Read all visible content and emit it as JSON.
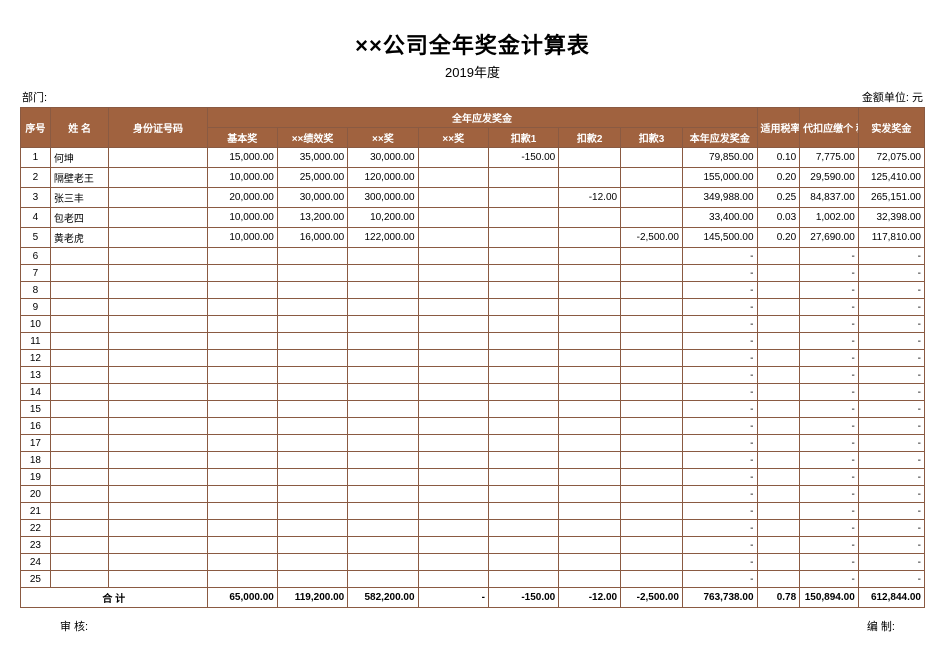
{
  "title": "××公司全年奖金计算表",
  "subtitle": "2019年度",
  "topLeft": "部门:",
  "topRight": "金额单位: 元",
  "headers": {
    "seq": "序号",
    "name": "姓  名",
    "id": "身份证号码",
    "group": "全年应发奖金",
    "base": "基本奖",
    "perf": "××绩效奖",
    "bon1": "××奖",
    "bon2": "××奖",
    "ded1": "扣款1",
    "ded2": "扣款2",
    "ded3": "扣款3",
    "total": "本年应发奖金",
    "rate": "适用税率",
    "tax": "代扣应缴个    税",
    "net": "实发奖金"
  },
  "rows": [
    {
      "seq": "1",
      "name": "何坤",
      "id": "",
      "base": "15,000.00",
      "perf": "35,000.00",
      "bon1": "30,000.00",
      "bon2": "",
      "ded1": "-150.00",
      "ded2": "",
      "ded3": "",
      "total": "79,850.00",
      "rate": "0.10",
      "tax": "7,775.00",
      "net": "72,075.00"
    },
    {
      "seq": "2",
      "name": "隔壁老王",
      "id": "",
      "base": "10,000.00",
      "perf": "25,000.00",
      "bon1": "120,000.00",
      "bon2": "",
      "ded1": "",
      "ded2": "",
      "ded3": "",
      "total": "155,000.00",
      "rate": "0.20",
      "tax": "29,590.00",
      "net": "125,410.00"
    },
    {
      "seq": "3",
      "name": "张三丰",
      "id": "",
      "base": "20,000.00",
      "perf": "30,000.00",
      "bon1": "300,000.00",
      "bon2": "",
      "ded1": "",
      "ded2": "-12.00",
      "ded3": "",
      "total": "349,988.00",
      "rate": "0.25",
      "tax": "84,837.00",
      "net": "265,151.00"
    },
    {
      "seq": "4",
      "name": "包老四",
      "id": "",
      "base": "10,000.00",
      "perf": "13,200.00",
      "bon1": "10,200.00",
      "bon2": "",
      "ded1": "",
      "ded2": "",
      "ded3": "",
      "total": "33,400.00",
      "rate": "0.03",
      "tax": "1,002.00",
      "net": "32,398.00"
    },
    {
      "seq": "5",
      "name": "黄老虎",
      "id": "",
      "base": "10,000.00",
      "perf": "16,000.00",
      "bon1": "122,000.00",
      "bon2": "",
      "ded1": "",
      "ded2": "",
      "ded3": "-2,500.00",
      "total": "145,500.00",
      "rate": "0.20",
      "tax": "27,690.00",
      "net": "117,810.00"
    },
    {
      "seq": "6",
      "name": "",
      "id": "",
      "base": "",
      "perf": "",
      "bon1": "",
      "bon2": "",
      "ded1": "",
      "ded2": "",
      "ded3": "",
      "total": "-",
      "rate": "",
      "tax": "-",
      "net": "-"
    },
    {
      "seq": "7",
      "name": "",
      "id": "",
      "base": "",
      "perf": "",
      "bon1": "",
      "bon2": "",
      "ded1": "",
      "ded2": "",
      "ded3": "",
      "total": "-",
      "rate": "",
      "tax": "-",
      "net": "-"
    },
    {
      "seq": "8",
      "name": "",
      "id": "",
      "base": "",
      "perf": "",
      "bon1": "",
      "bon2": "",
      "ded1": "",
      "ded2": "",
      "ded3": "",
      "total": "-",
      "rate": "",
      "tax": "-",
      "net": "-"
    },
    {
      "seq": "9",
      "name": "",
      "id": "",
      "base": "",
      "perf": "",
      "bon1": "",
      "bon2": "",
      "ded1": "",
      "ded2": "",
      "ded3": "",
      "total": "-",
      "rate": "",
      "tax": "-",
      "net": "-"
    },
    {
      "seq": "10",
      "name": "",
      "id": "",
      "base": "",
      "perf": "",
      "bon1": "",
      "bon2": "",
      "ded1": "",
      "ded2": "",
      "ded3": "",
      "total": "-",
      "rate": "",
      "tax": "-",
      "net": "-"
    },
    {
      "seq": "11",
      "name": "",
      "id": "",
      "base": "",
      "perf": "",
      "bon1": "",
      "bon2": "",
      "ded1": "",
      "ded2": "",
      "ded3": "",
      "total": "-",
      "rate": "",
      "tax": "-",
      "net": "-"
    },
    {
      "seq": "12",
      "name": "",
      "id": "",
      "base": "",
      "perf": "",
      "bon1": "",
      "bon2": "",
      "ded1": "",
      "ded2": "",
      "ded3": "",
      "total": "-",
      "rate": "",
      "tax": "-",
      "net": "-"
    },
    {
      "seq": "13",
      "name": "",
      "id": "",
      "base": "",
      "perf": "",
      "bon1": "",
      "bon2": "",
      "ded1": "",
      "ded2": "",
      "ded3": "",
      "total": "-",
      "rate": "",
      "tax": "-",
      "net": "-"
    },
    {
      "seq": "14",
      "name": "",
      "id": "",
      "base": "",
      "perf": "",
      "bon1": "",
      "bon2": "",
      "ded1": "",
      "ded2": "",
      "ded3": "",
      "total": "-",
      "rate": "",
      "tax": "-",
      "net": "-"
    },
    {
      "seq": "15",
      "name": "",
      "id": "",
      "base": "",
      "perf": "",
      "bon1": "",
      "bon2": "",
      "ded1": "",
      "ded2": "",
      "ded3": "",
      "total": "-",
      "rate": "",
      "tax": "-",
      "net": "-"
    },
    {
      "seq": "16",
      "name": "",
      "id": "",
      "base": "",
      "perf": "",
      "bon1": "",
      "bon2": "",
      "ded1": "",
      "ded2": "",
      "ded3": "",
      "total": "-",
      "rate": "",
      "tax": "-",
      "net": "-"
    },
    {
      "seq": "17",
      "name": "",
      "id": "",
      "base": "",
      "perf": "",
      "bon1": "",
      "bon2": "",
      "ded1": "",
      "ded2": "",
      "ded3": "",
      "total": "-",
      "rate": "",
      "tax": "-",
      "net": "-"
    },
    {
      "seq": "18",
      "name": "",
      "id": "",
      "base": "",
      "perf": "",
      "bon1": "",
      "bon2": "",
      "ded1": "",
      "ded2": "",
      "ded3": "",
      "total": "-",
      "rate": "",
      "tax": "-",
      "net": "-"
    },
    {
      "seq": "19",
      "name": "",
      "id": "",
      "base": "",
      "perf": "",
      "bon1": "",
      "bon2": "",
      "ded1": "",
      "ded2": "",
      "ded3": "",
      "total": "-",
      "rate": "",
      "tax": "-",
      "net": "-"
    },
    {
      "seq": "20",
      "name": "",
      "id": "",
      "base": "",
      "perf": "",
      "bon1": "",
      "bon2": "",
      "ded1": "",
      "ded2": "",
      "ded3": "",
      "total": "-",
      "rate": "",
      "tax": "-",
      "net": "-"
    },
    {
      "seq": "21",
      "name": "",
      "id": "",
      "base": "",
      "perf": "",
      "bon1": "",
      "bon2": "",
      "ded1": "",
      "ded2": "",
      "ded3": "",
      "total": "-",
      "rate": "",
      "tax": "-",
      "net": "-"
    },
    {
      "seq": "22",
      "name": "",
      "id": "",
      "base": "",
      "perf": "",
      "bon1": "",
      "bon2": "",
      "ded1": "",
      "ded2": "",
      "ded3": "",
      "total": "-",
      "rate": "",
      "tax": "-",
      "net": "-"
    },
    {
      "seq": "23",
      "name": "",
      "id": "",
      "base": "",
      "perf": "",
      "bon1": "",
      "bon2": "",
      "ded1": "",
      "ded2": "",
      "ded3": "",
      "total": "-",
      "rate": "",
      "tax": "-",
      "net": "-"
    },
    {
      "seq": "24",
      "name": "",
      "id": "",
      "base": "",
      "perf": "",
      "bon1": "",
      "bon2": "",
      "ded1": "",
      "ded2": "",
      "ded3": "",
      "total": "-",
      "rate": "",
      "tax": "-",
      "net": "-"
    },
    {
      "seq": "25",
      "name": "",
      "id": "",
      "base": "",
      "perf": "",
      "bon1": "",
      "bon2": "",
      "ded1": "",
      "ded2": "",
      "ded3": "",
      "total": "-",
      "rate": "",
      "tax": "-",
      "net": "-"
    }
  ],
  "totals": {
    "label": "合        计",
    "base": "65,000.00",
    "perf": "119,200.00",
    "bon1": "582,200.00",
    "bon2": "-",
    "ded1": "-150.00",
    "ded2": "-12.00",
    "ded3": "-2,500.00",
    "total": "763,738.00",
    "rate": "0.78",
    "tax": "150,894.00",
    "net": "612,844.00"
  },
  "footerLeft": "审 核:",
  "footerRight": "编 制:",
  "colors": {
    "headerBg": "#a0623f",
    "headerText": "#ffffff",
    "border": "#8a5a42",
    "bodyBg": "#ffffff"
  }
}
